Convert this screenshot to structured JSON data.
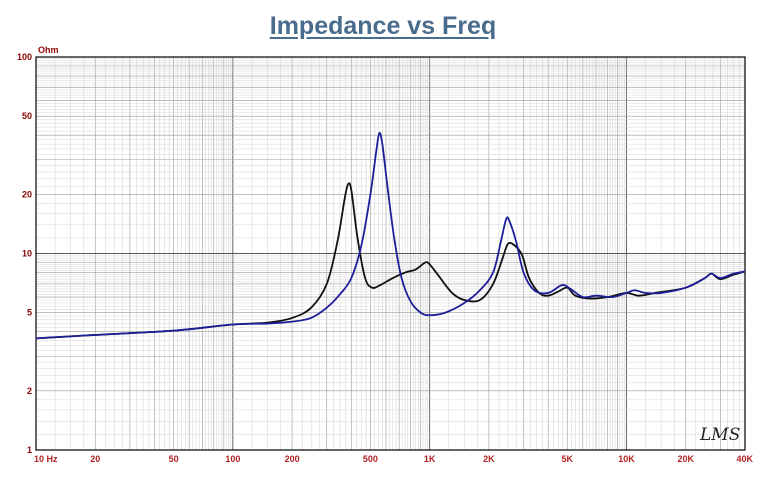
{
  "chart_data": {
    "type": "line",
    "title": "Impedance vs Freq",
    "ylabel": "Ohm",
    "xscale": "log",
    "yscale": "log",
    "xlim": [
      10,
      40000
    ],
    "ylim": [
      1,
      100
    ],
    "grid": true,
    "y_ticks": [
      {
        "value": 100,
        "label": "100"
      },
      {
        "value": 50,
        "label": "50"
      },
      {
        "value": 20,
        "label": "20"
      },
      {
        "value": 10,
        "label": "10"
      },
      {
        "value": 5,
        "label": "5"
      },
      {
        "value": 2,
        "label": "2"
      },
      {
        "value": 1,
        "label": "1"
      }
    ],
    "x_ticks": [
      {
        "value": 10,
        "label": "10  Hz"
      },
      {
        "value": 20,
        "label": "20"
      },
      {
        "value": 50,
        "label": "50"
      },
      {
        "value": 100,
        "label": "100"
      },
      {
        "value": 200,
        "label": "200"
      },
      {
        "value": 500,
        "label": "500"
      },
      {
        "value": 1000,
        "label": "1K"
      },
      {
        "value": 2000,
        "label": "2K"
      },
      {
        "value": 5000,
        "label": "5K"
      },
      {
        "value": 10000,
        "label": "10K"
      },
      {
        "value": 20000,
        "label": "20K"
      },
      {
        "value": 40000,
        "label": "40K"
      }
    ],
    "series": [
      {
        "color": "#111111",
        "points": [
          [
            10,
            3.7
          ],
          [
            20,
            3.85
          ],
          [
            50,
            4.05
          ],
          [
            100,
            4.35
          ],
          [
            150,
            4.45
          ],
          [
            200,
            4.7
          ],
          [
            250,
            5.3
          ],
          [
            300,
            7.0
          ],
          [
            340,
            11.5
          ],
          [
            370,
            19.0
          ],
          [
            385,
            22.5
          ],
          [
            400,
            21.0
          ],
          [
            430,
            12.0
          ],
          [
            470,
            7.5
          ],
          [
            510,
            6.7
          ],
          [
            560,
            6.9
          ],
          [
            650,
            7.5
          ],
          [
            750,
            8.0
          ],
          [
            850,
            8.3
          ],
          [
            950,
            9.0
          ],
          [
            1000,
            8.8
          ],
          [
            1100,
            7.8
          ],
          [
            1300,
            6.3
          ],
          [
            1500,
            5.8
          ],
          [
            1800,
            5.8
          ],
          [
            2100,
            7.0
          ],
          [
            2350,
            9.5
          ],
          [
            2500,
            11.2
          ],
          [
            2700,
            11.0
          ],
          [
            2950,
            9.8
          ],
          [
            3200,
            7.5
          ],
          [
            3600,
            6.3
          ],
          [
            4000,
            6.1
          ],
          [
            4500,
            6.4
          ],
          [
            5000,
            6.7
          ],
          [
            5500,
            6.1
          ],
          [
            6500,
            5.9
          ],
          [
            8000,
            6.0
          ],
          [
            10000,
            6.3
          ],
          [
            11500,
            6.1
          ],
          [
            14000,
            6.3
          ],
          [
            20000,
            6.7
          ],
          [
            25000,
            7.5
          ],
          [
            27000,
            7.9
          ],
          [
            30000,
            7.4
          ],
          [
            35000,
            7.8
          ],
          [
            40000,
            8.1
          ]
        ]
      },
      {
        "color": "#1e1e9a",
        "points": [
          [
            10,
            3.7
          ],
          [
            20,
            3.85
          ],
          [
            50,
            4.05
          ],
          [
            100,
            4.35
          ],
          [
            150,
            4.4
          ],
          [
            200,
            4.5
          ],
          [
            250,
            4.7
          ],
          [
            300,
            5.3
          ],
          [
            350,
            6.2
          ],
          [
            400,
            7.5
          ],
          [
            450,
            11.0
          ],
          [
            500,
            20.0
          ],
          [
            535,
            33.0
          ],
          [
            555,
            41.0
          ],
          [
            575,
            36.0
          ],
          [
            610,
            22.0
          ],
          [
            660,
            12.0
          ],
          [
            720,
            7.5
          ],
          [
            800,
            5.7
          ],
          [
            900,
            5.0
          ],
          [
            1000,
            4.85
          ],
          [
            1200,
            5.0
          ],
          [
            1500,
            5.6
          ],
          [
            1800,
            6.5
          ],
          [
            2100,
            8.0
          ],
          [
            2300,
            11.5
          ],
          [
            2450,
            15.0
          ],
          [
            2550,
            14.5
          ],
          [
            2750,
            11.5
          ],
          [
            3000,
            8.0
          ],
          [
            3400,
            6.5
          ],
          [
            4000,
            6.3
          ],
          [
            4700,
            6.9
          ],
          [
            5200,
            6.6
          ],
          [
            6000,
            6.0
          ],
          [
            7000,
            6.1
          ],
          [
            8500,
            6.0
          ],
          [
            10000,
            6.3
          ],
          [
            11000,
            6.5
          ],
          [
            12500,
            6.3
          ],
          [
            15000,
            6.3
          ],
          [
            20000,
            6.7
          ],
          [
            25000,
            7.5
          ],
          [
            27000,
            7.9
          ],
          [
            30000,
            7.5
          ],
          [
            35000,
            7.9
          ],
          [
            40000,
            8.1
          ]
        ]
      }
    ]
  },
  "watermark": "LMS"
}
